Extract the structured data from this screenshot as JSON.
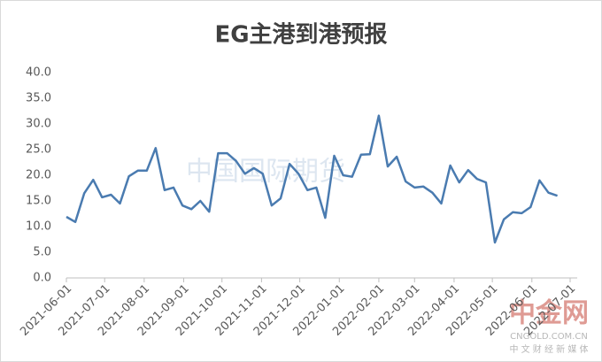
{
  "chart_data": {
    "type": "line",
    "title": "EG主港到港预报",
    "x": [
      "2021-06-01",
      "2021-06-08",
      "2021-06-15",
      "2021-06-22",
      "2021-06-29",
      "2021-07-06",
      "2021-07-13",
      "2021-07-20",
      "2021-07-27",
      "2021-08-03",
      "2021-08-10",
      "2021-08-17",
      "2021-08-24",
      "2021-08-31",
      "2021-09-07",
      "2021-09-14",
      "2021-09-21",
      "2021-09-28",
      "2021-10-05",
      "2021-10-12",
      "2021-10-19",
      "2021-10-26",
      "2021-11-02",
      "2021-11-09",
      "2021-11-16",
      "2021-11-23",
      "2021-11-30",
      "2021-12-07",
      "2021-12-14",
      "2021-12-21",
      "2021-12-28",
      "2022-01-04",
      "2022-01-11",
      "2022-01-18",
      "2022-01-25",
      "2022-02-01",
      "2022-02-08",
      "2022-02-15",
      "2022-02-22",
      "2022-03-01",
      "2022-03-08",
      "2022-03-15",
      "2022-03-22",
      "2022-03-29",
      "2022-04-05",
      "2022-04-12",
      "2022-04-19",
      "2022-04-26",
      "2022-05-03",
      "2022-05-10",
      "2022-05-17",
      "2022-05-24",
      "2022-05-31",
      "2022-06-07",
      "2022-06-14",
      "2022-06-21"
    ],
    "series": [
      {
        "color": "#4a7bb0",
        "values": [
          11.9,
          10.9,
          16.5,
          19.1,
          15.7,
          16.2,
          14.5,
          19.8,
          20.9,
          20.9,
          25.3,
          17.1,
          17.6,
          14.1,
          13.4,
          15.0,
          12.9,
          24.3,
          24.3,
          22.8,
          20.3,
          21.4,
          20.3,
          14.1,
          15.5,
          22.2,
          20.3,
          17.1,
          17.6,
          11.7,
          23.8,
          20.0,
          19.7,
          24.0,
          24.1,
          31.6,
          21.7,
          23.6,
          18.8,
          17.6,
          17.8,
          16.6,
          14.5,
          21.9,
          18.6,
          21.0,
          19.3,
          18.6,
          6.9,
          11.4,
          12.8,
          12.6,
          13.8,
          19.0,
          16.6,
          16.0
        ]
      }
    ],
    "xlim": [
      "2021-06-01",
      "2022-07-01"
    ],
    "xticks": [
      "2021-06-01",
      "2021-07-01",
      "2021-08-01",
      "2021-09-01",
      "2021-10-01",
      "2021-11-01",
      "2021-12-01",
      "2022-01-01",
      "2022-02-01",
      "2022-03-01",
      "2022-04-01",
      "2022-05-01",
      "2022-06-01",
      "2022-07-01"
    ],
    "ylim": [
      0,
      40
    ],
    "yticks": [
      {
        "value": 0,
        "label": "0.0"
      },
      {
        "value": 5,
        "label": "5.0"
      },
      {
        "value": 10,
        "label": "10.0"
      },
      {
        "value": 15,
        "label": "15.0"
      },
      {
        "value": 20,
        "label": "20.0"
      },
      {
        "value": 25,
        "label": "25.0"
      },
      {
        "value": 30,
        "label": "30.0"
      },
      {
        "value": 35,
        "label": "35.0"
      },
      {
        "value": 40,
        "label": "40.0"
      }
    ],
    "grid": false,
    "watermarks": [
      "中国国际期货",
      "中金网",
      "CNGOLD.COM.CN",
      "中 文 财 经 新 媒 体"
    ]
  }
}
